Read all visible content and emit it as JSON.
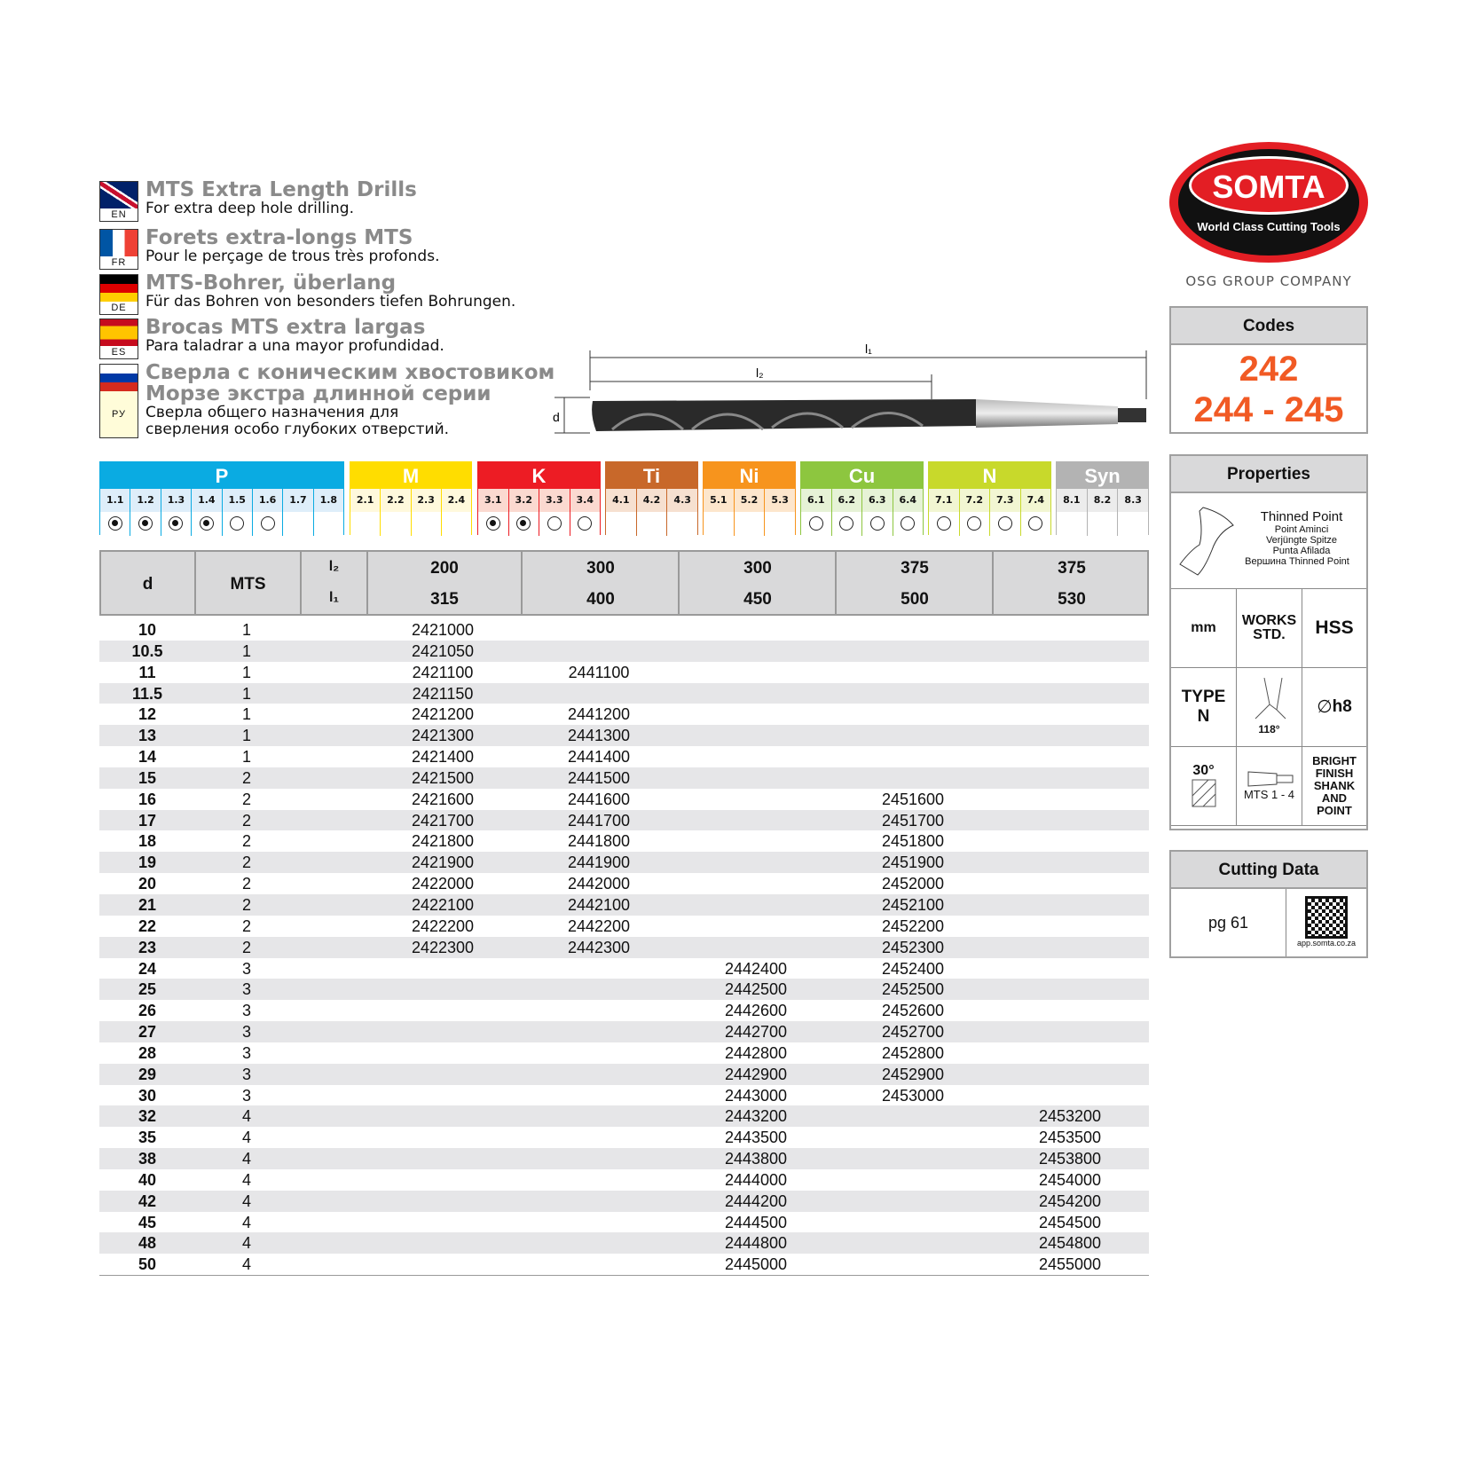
{
  "languages": [
    {
      "code": "EN",
      "title": "MTS Extra Length Drills",
      "subtitle": "For extra deep hole drilling."
    },
    {
      "code": "FR",
      "title": "Forets extra-longs MTS",
      "subtitle": "Pour le perçage de trous très profonds."
    },
    {
      "code": "DE",
      "title": "MTS-Bohrer, überlang",
      "subtitle": "Für das Bohren von besonders tiefen Bohrungen."
    },
    {
      "code": "ES",
      "title": "Brocas MTS extra largas",
      "subtitle": "Para taladrar a una mayor profundidad."
    },
    {
      "code": "РУ",
      "title": "Сверла с коническим хвостовиком\nМорзе экстра длинной серии",
      "subtitle": "Сверла общего назначения для\nсверления особо глубоких отверстий."
    }
  ],
  "drawing": {
    "l1": "l₁",
    "l2": "l₂",
    "d": "d"
  },
  "logo": {
    "brand": "SOMTA",
    "tagline": "World Class Cutting Tools",
    "group": "OSG GROUP COMPANY",
    "red": "#e31e24"
  },
  "codes": {
    "title": "Codes",
    "line1": "242",
    "line2": "244 - 245",
    "color": "#f15a24"
  },
  "materials": [
    {
      "name": "P",
      "color": "#0aabe2",
      "tint": "#deeefa",
      "subs": [
        "1.1",
        "1.2",
        "1.3",
        "1.4",
        "1.5",
        "1.6",
        "1.7",
        "1.8"
      ],
      "marks": [
        "filled",
        "filled",
        "filled",
        "filled",
        "empty",
        "empty",
        "",
        ""
      ]
    },
    {
      "name": "M",
      "color": "#ffdd00",
      "tint": "#fff9dc",
      "subs": [
        "2.1",
        "2.2",
        "2.3",
        "2.4"
      ],
      "marks": [
        "",
        "",
        "",
        ""
      ]
    },
    {
      "name": "K",
      "color": "#ed1c24",
      "tint": "#fbd9d0",
      "subs": [
        "3.1",
        "3.2",
        "3.3",
        "3.4"
      ],
      "marks": [
        "filled",
        "filled",
        "empty",
        "empty"
      ]
    },
    {
      "name": "Ti",
      "color": "#c8682a",
      "tint": "#f6e0d0",
      "subs": [
        "4.1",
        "4.2",
        "4.3"
      ],
      "marks": [
        "",
        "",
        ""
      ]
    },
    {
      "name": "Ni",
      "color": "#f7941d",
      "tint": "#fde6cc",
      "subs": [
        "5.1",
        "5.2",
        "5.3"
      ],
      "marks": [
        "",
        "",
        ""
      ]
    },
    {
      "name": "Cu",
      "color": "#8dc63f",
      "tint": "#e6f2d6",
      "subs": [
        "6.1",
        "6.2",
        "6.3",
        "6.4"
      ],
      "marks": [
        "empty",
        "empty",
        "empty",
        "empty"
      ]
    },
    {
      "name": "N",
      "color": "#c8d92b",
      "tint": "#f2f6d2",
      "subs": [
        "7.1",
        "7.2",
        "7.3",
        "7.4"
      ],
      "marks": [
        "empty",
        "empty",
        "empty",
        "empty"
      ]
    },
    {
      "name": "Syn",
      "color": "#b3b3b3",
      "tint": "#ececec",
      "subs": [
        "8.1",
        "8.2",
        "8.3"
      ],
      "marks": [
        "",
        "",
        ""
      ]
    }
  ],
  "table": {
    "headers": {
      "d": "d",
      "mts": "MTS",
      "l2": "l₂",
      "l1": "l₁",
      "l2_values": [
        "200",
        "300",
        "300",
        "375",
        "375"
      ],
      "l1_values": [
        "315",
        "400",
        "450",
        "500",
        "530"
      ]
    },
    "rows": [
      [
        "10",
        "1",
        "2421000",
        "",
        "",
        "",
        ""
      ],
      [
        "10.5",
        "1",
        "2421050",
        "",
        "",
        "",
        ""
      ],
      [
        "11",
        "1",
        "2421100",
        "2441100",
        "",
        "",
        ""
      ],
      [
        "11.5",
        "1",
        "2421150",
        "",
        "",
        "",
        ""
      ],
      [
        "12",
        "1",
        "2421200",
        "2441200",
        "",
        "",
        ""
      ],
      [
        "13",
        "1",
        "2421300",
        "2441300",
        "",
        "",
        ""
      ],
      [
        "14",
        "1",
        "2421400",
        "2441400",
        "",
        "",
        ""
      ],
      [
        "15",
        "2",
        "2421500",
        "2441500",
        "",
        "",
        ""
      ],
      [
        "16",
        "2",
        "2421600",
        "2441600",
        "",
        "2451600",
        ""
      ],
      [
        "17",
        "2",
        "2421700",
        "2441700",
        "",
        "2451700",
        ""
      ],
      [
        "18",
        "2",
        "2421800",
        "2441800",
        "",
        "2451800",
        ""
      ],
      [
        "19",
        "2",
        "2421900",
        "2441900",
        "",
        "2451900",
        ""
      ],
      [
        "20",
        "2",
        "2422000",
        "2442000",
        "",
        "2452000",
        ""
      ],
      [
        "21",
        "2",
        "2422100",
        "2442100",
        "",
        "2452100",
        ""
      ],
      [
        "22",
        "2",
        "2422200",
        "2442200",
        "",
        "2452200",
        ""
      ],
      [
        "23",
        "2",
        "2422300",
        "2442300",
        "",
        "2452300",
        ""
      ],
      [
        "24",
        "3",
        "",
        "",
        "2442400",
        "2452400",
        ""
      ],
      [
        "25",
        "3",
        "",
        "",
        "2442500",
        "2452500",
        ""
      ],
      [
        "26",
        "3",
        "",
        "",
        "2442600",
        "2452600",
        ""
      ],
      [
        "27",
        "3",
        "",
        "",
        "2442700",
        "2452700",
        ""
      ],
      [
        "28",
        "3",
        "",
        "",
        "2442800",
        "2452800",
        ""
      ],
      [
        "29",
        "3",
        "",
        "",
        "2442900",
        "2452900",
        ""
      ],
      [
        "30",
        "3",
        "",
        "",
        "2443000",
        "2453000",
        ""
      ],
      [
        "32",
        "4",
        "",
        "",
        "2443200",
        "",
        "2453200"
      ],
      [
        "35",
        "4",
        "",
        "",
        "2443500",
        "",
        "2453500"
      ],
      [
        "38",
        "4",
        "",
        "",
        "2443800",
        "",
        "2453800"
      ],
      [
        "40",
        "4",
        "",
        "",
        "2444000",
        "",
        "2454000"
      ],
      [
        "42",
        "4",
        "",
        "",
        "2444200",
        "",
        "2454200"
      ],
      [
        "45",
        "4",
        "",
        "",
        "2444500",
        "",
        "2454500"
      ],
      [
        "48",
        "4",
        "",
        "",
        "2444800",
        "",
        "2454800"
      ],
      [
        "50",
        "4",
        "",
        "",
        "2445000",
        "",
        "2455000"
      ]
    ]
  },
  "properties": {
    "title": "Properties",
    "point": "Thinned Point",
    "point_fr": "Point Aminci",
    "point_de": "Verjüngte Spitze",
    "point_es": "Punta Afilada",
    "point_ru": "Вершина Thinned Point",
    "unit": "mm",
    "standard": "WORKS STD.",
    "material": "HSS",
    "type": "TYPE N",
    "angle": "118°",
    "tolerance": "h8",
    "helix": "30°",
    "shank": "MTS 1 - 4",
    "finish": "BRIGHT FINISH SHANK AND POINT"
  },
  "cutting": {
    "title": "Cutting Data",
    "page": "pg 61",
    "url": "app.somta.co.za"
  }
}
